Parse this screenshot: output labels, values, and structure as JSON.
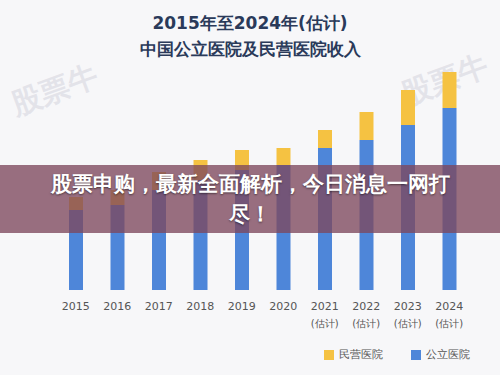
{
  "chart_data": {
    "type": "bar",
    "title": "2015年至2024年(估计)",
    "subtitle": "中国公立医院及民营医院收入",
    "categories": [
      "2015",
      "2016",
      "2017",
      "2018",
      "2019",
      "2020",
      "2021(估计)",
      "2022(估计)",
      "2023(估计)",
      "2024(估计)"
    ],
    "series": [
      {
        "name": "公立医院",
        "color": "#4e86d9",
        "values": [
          80,
          85,
          100,
          110,
          120,
          125,
          142,
          150,
          165,
          182
        ]
      },
      {
        "name": "民营医院",
        "color": "#f5c242",
        "values": [
          13,
          15,
          18,
          20,
          20,
          17,
          18,
          28,
          35,
          36
        ]
      }
    ],
    "stacked": true,
    "ylim": [
      0,
      220
    ],
    "tick_labels": "x",
    "legend": "bottom-right",
    "annotations": [
      "股票申购，最新全面解析，今日消息一网打尽！"
    ],
    "watermark": "股票牛"
  }
}
